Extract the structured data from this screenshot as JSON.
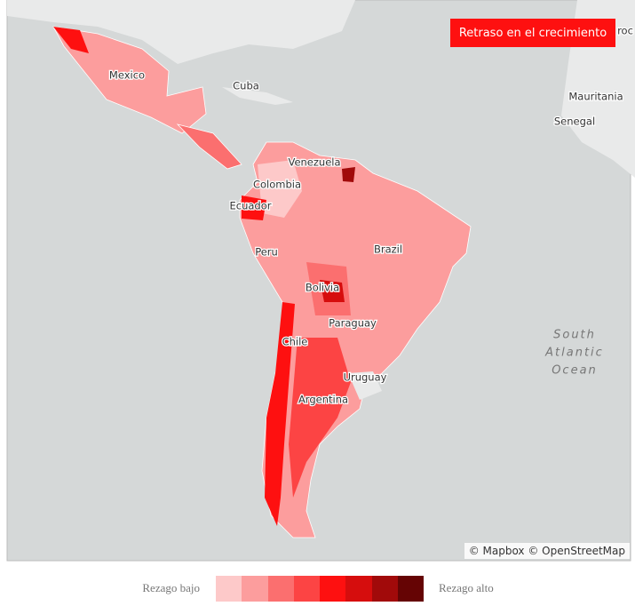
{
  "button": "Retraso en el crecimiento",
  "places": [
    "Mexico",
    "Cuba",
    "Venezuela",
    "Colombia",
    "Ecuador",
    "Peru",
    "Brazil",
    "Bolivia",
    "Paraguay",
    "Chile",
    "Uruguay",
    "Argentina",
    "Mauritania",
    "Senegal",
    "roc"
  ],
  "ocean": [
    "South",
    "Atlantic",
    "Ocean"
  ],
  "attribution": "© Mapbox © OpenStreetMap",
  "legend": {
    "low": "Rezago bajo",
    "high": "Rezago alto",
    "colors": [
      "#fdc9c9",
      "#fc9d9d",
      "#fb6f6f",
      "#fc4444",
      "#fe1010",
      "#d60d0d",
      "#a10a0a",
      "#650404"
    ]
  }
}
